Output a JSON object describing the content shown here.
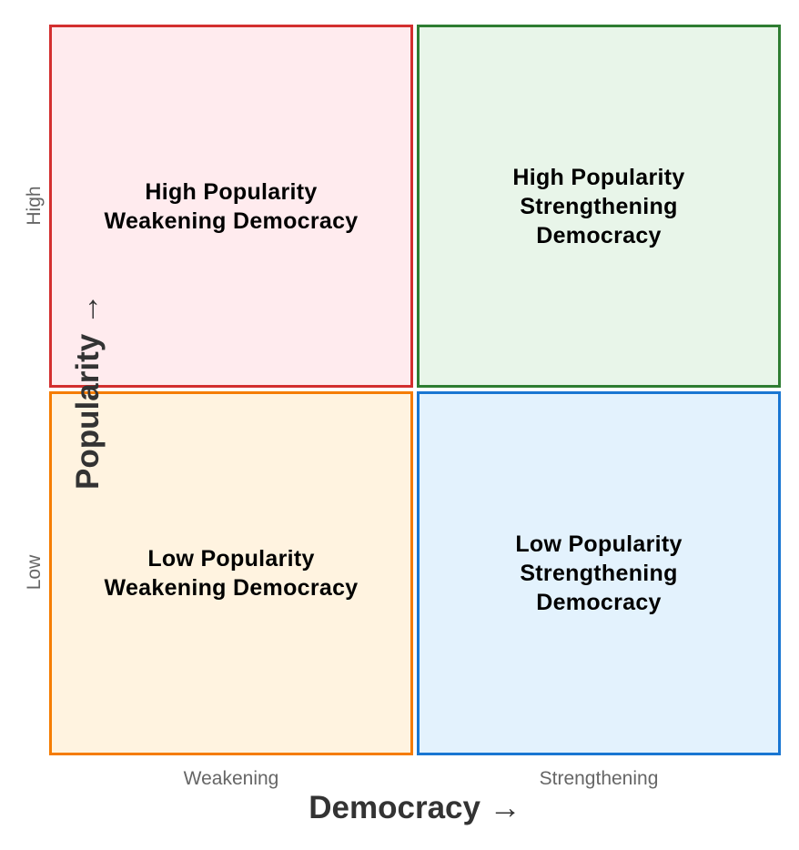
{
  "quadrants": [
    {
      "id": "high-weakening",
      "label": "High Popularity\nWeakening Democracy",
      "fill": "#FFEBEE",
      "border": "#D32F2F"
    },
    {
      "id": "high-strengthening",
      "label": "High Popularity\nStrengthening\nDemocracy",
      "fill": "#E8F5E9",
      "border": "#2E7D32"
    },
    {
      "id": "low-weakening",
      "label": "Low Popularity\nWeakening Democracy",
      "fill": "#FFF3E0",
      "border": "#F57C00"
    },
    {
      "id": "low-strengthening",
      "label": "Low Popularity\nStrengthening\nDemocracy",
      "fill": "#E3F2FD",
      "border": "#1976D2"
    }
  ],
  "x_axis": {
    "title": "Democracy →",
    "ticks": [
      "Weakening",
      "Strengthening"
    ]
  },
  "y_axis": {
    "title": "Popularity →",
    "ticks": [
      "High",
      "Low"
    ]
  }
}
